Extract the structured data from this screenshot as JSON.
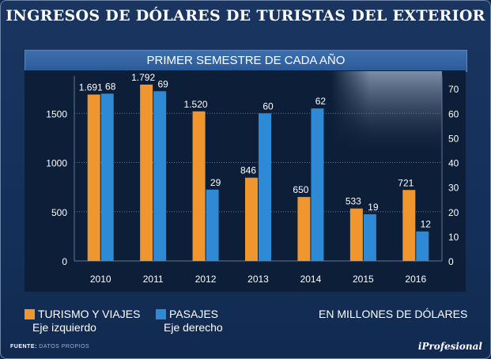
{
  "header": {
    "title": "INGRESOS DE DÓLARES DE TURISTAS DEL EXTERIOR",
    "subtitle": "PRIMER SEMESTRE DE CADA AÑO"
  },
  "legend": {
    "items": [
      {
        "label": "TURISMO Y VIAJES",
        "axis": "Eje izquierdo",
        "color": "#f0962e"
      },
      {
        "label": "PASAJES",
        "axis": "Eje derecho",
        "color": "#2f8ad6"
      }
    ],
    "units": "EN MILLONES DE DÓLARES"
  },
  "footer": {
    "source_label": "FUENTE:",
    "source_value": "DATOS PROPIOS",
    "brand": "iProfesional"
  },
  "chart_data": {
    "type": "bar",
    "categories": [
      "2010",
      "2011",
      "2012",
      "2013",
      "2014",
      "2015",
      "2016"
    ],
    "series": [
      {
        "name": "TURISMO Y VIAJES",
        "axis": "left",
        "color": "#f0962e",
        "values": [
          1691,
          1792,
          1520,
          846,
          650,
          533,
          721
        ],
        "labels": [
          "1.691",
          "1.792",
          "1.520",
          "846",
          "650",
          "533",
          "721"
        ]
      },
      {
        "name": "PASAJES",
        "axis": "right",
        "color": "#2f8ad6",
        "values": [
          68,
          69,
          29,
          60,
          62,
          19,
          12
        ],
        "labels": [
          "68",
          "69",
          "29",
          "60",
          "62",
          "19",
          "12"
        ]
      }
    ],
    "y_left": {
      "lim": [
        0,
        1800
      ],
      "ticks": [
        0,
        500,
        1000,
        1500
      ]
    },
    "y_right": {
      "lim": [
        0,
        72
      ],
      "ticks": [
        0,
        10,
        20,
        30,
        40,
        50,
        60,
        70
      ]
    },
    "grid": true
  }
}
